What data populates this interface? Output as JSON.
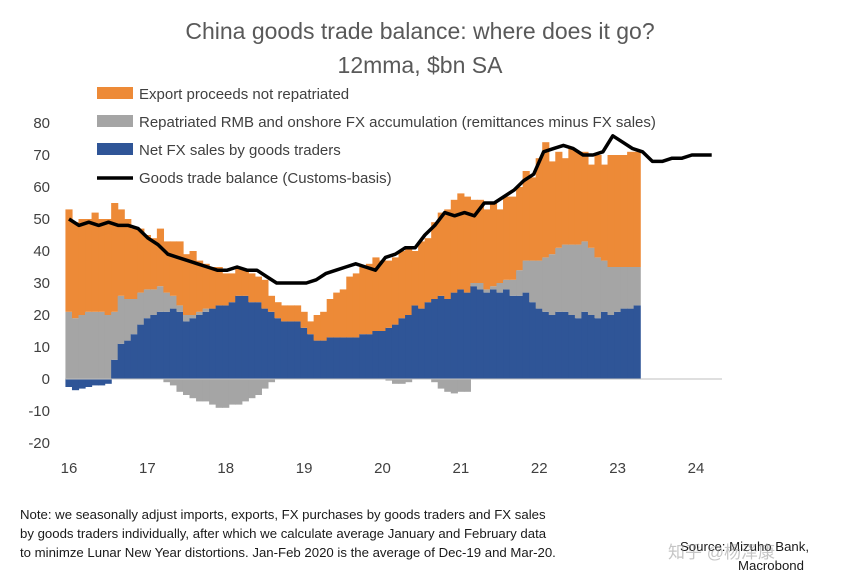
{
  "chart_data": {
    "type": "area",
    "title": "China goods trade balance: where does it go?",
    "subtitle": "12mma, $bn SA",
    "xlabel": "",
    "ylabel": "",
    "x_start": 2016.0,
    "x_step_years": 0.0833333,
    "x_ticks": [
      {
        "label": "16",
        "value": 2016
      },
      {
        "label": "17",
        "value": 2017
      },
      {
        "label": "18",
        "value": 2018
      },
      {
        "label": "19",
        "value": 2019
      },
      {
        "label": "20",
        "value": 2020
      },
      {
        "label": "21",
        "value": 2021
      },
      {
        "label": "22",
        "value": 2022
      },
      {
        "label": "23",
        "value": 2023
      },
      {
        "label": "24",
        "value": 2024
      }
    ],
    "ylim": [
      -20,
      80
    ],
    "y_ticks": [
      80,
      70,
      60,
      50,
      40,
      30,
      20,
      10,
      0,
      -10,
      -20
    ],
    "legend_position": "top-left",
    "series": [
      {
        "name": "Export proceeds not repatriated",
        "kind": "stacked-area",
        "color": "#ED8A37",
        "values": [
          32,
          30,
          30,
          29,
          31,
          29,
          30,
          34,
          27,
          25,
          22,
          20,
          17,
          16,
          18,
          16,
          17,
          20,
          19,
          20,
          16,
          14,
          13,
          12,
          10,
          9,
          9,
          8,
          9,
          8,
          9,
          5,
          5,
          5,
          5,
          5,
          5,
          4,
          8,
          9,
          12,
          14,
          15,
          19,
          20,
          21,
          22,
          23,
          22,
          21,
          21,
          21,
          21,
          17,
          21,
          20,
          24,
          26,
          28,
          29,
          30,
          30,
          26,
          26,
          25,
          26,
          23,
          26,
          26,
          26,
          28,
          26,
          32,
          36,
          29,
          30,
          27,
          30,
          29,
          28,
          26,
          32,
          30,
          35,
          35,
          35,
          36,
          36
        ]
      },
      {
        "name": "Repatriated RMB and onshore FX accumulation (remittances minus FX sales)",
        "kind": "stacked-area",
        "color": "#A5A5A5",
        "values": [
          21,
          19,
          20,
          21,
          21,
          21,
          20,
          15,
          15,
          13,
          11,
          10,
          9,
          8,
          8,
          6,
          4,
          2,
          2,
          1,
          1,
          1,
          0,
          0,
          0,
          0,
          0,
          0,
          0,
          0,
          0,
          0,
          0,
          0,
          0,
          0,
          0,
          0,
          0,
          0,
          0,
          0,
          0,
          0,
          0,
          0,
          0,
          0,
          0,
          0,
          0,
          0,
          0,
          0,
          0,
          0,
          0,
          0,
          0,
          0,
          0,
          0,
          1,
          2,
          1,
          1,
          3,
          3,
          5,
          8,
          10,
          13,
          15,
          17,
          19,
          20,
          21,
          22,
          23,
          22,
          21,
          19,
          16,
          15,
          14,
          13,
          13,
          12
        ]
      },
      {
        "name": "Net FX sales by goods traders",
        "kind": "stacked-area",
        "color": "#2F5597",
        "values": [
          -2.5,
          -3.5,
          -3,
          -2.5,
          -2,
          -2,
          -1.5,
          6,
          11,
          12,
          14,
          17,
          19,
          20,
          21,
          21,
          22,
          21,
          18,
          19,
          20,
          21,
          22,
          23,
          23,
          24,
          26,
          26,
          24,
          24,
          22,
          21,
          19,
          18,
          18,
          18,
          16,
          14,
          12,
          12,
          13,
          13,
          13,
          13,
          13,
          14,
          14,
          15,
          15,
          16,
          17,
          19,
          20,
          23,
          22,
          24,
          25,
          26,
          25,
          27,
          28,
          27,
          29,
          28,
          27,
          28,
          27,
          28,
          26,
          26,
          27,
          24,
          22,
          21,
          20,
          21,
          21,
          20,
          19,
          21,
          20,
          19,
          21,
          20,
          21,
          22,
          22,
          23
        ]
      },
      {
        "name": "Goods trade balance (Customs-basis)",
        "kind": "line",
        "color": "#000000",
        "values": [
          50,
          48,
          49,
          48,
          49,
          48,
          48,
          47,
          44,
          42,
          39,
          38,
          37,
          36,
          35,
          34,
          34,
          35,
          34,
          34,
          32,
          30,
          30,
          30,
          30,
          31,
          33,
          34,
          35,
          36,
          35,
          34,
          38,
          39,
          41,
          41,
          45,
          48,
          52,
          51,
          52,
          51,
          55,
          55,
          57,
          59,
          62,
          64,
          71,
          72,
          73,
          72,
          70,
          70,
          71,
          76,
          74,
          72,
          71,
          68,
          68,
          69,
          69,
          70,
          70,
          70
        ]
      },
      {
        "name": "Negative net FX (below zero)",
        "kind": "negative-bars",
        "color": "#A5A5A5",
        "values": [
          0,
          0,
          0,
          0,
          0,
          0,
          0,
          0,
          0,
          0,
          0,
          0,
          0,
          0,
          0,
          -1,
          -2,
          -4,
          -5,
          -6,
          -7,
          -7,
          -8,
          -9,
          -9,
          -8,
          -8,
          -7,
          -6,
          -5,
          -3,
          -1,
          0,
          0,
          0,
          0,
          0,
          0,
          0,
          0,
          0,
          0,
          0,
          0,
          0,
          0,
          0,
          0,
          0,
          -0.5,
          -1.5,
          -1.5,
          -1,
          0,
          0,
          0,
          -1,
          -3,
          -4,
          -4.5,
          -4,
          -4,
          0,
          0,
          0,
          0,
          0,
          0,
          0,
          0,
          0,
          0,
          0,
          0,
          0,
          0,
          0,
          0,
          0,
          0,
          0,
          0,
          0,
          0,
          0,
          0,
          0,
          0
        ]
      }
    ]
  },
  "note": {
    "lines": [
      "Note: we seasonally adjust imports, exports, FX purchases by goods traders and FX sales",
      "by goods traders individually, after which we calculate average January and February data",
      "to minimze Lunar New Year distortions. Jan-Feb 2020 is the average of Dec-19 and Mar-20."
    ]
  },
  "source": {
    "line1": "Source: Mizuho Bank,",
    "line2": "Macrobond"
  },
  "watermark": "知乎 @杨泽康",
  "colors": {
    "orange": "#ED8A37",
    "grey": "#A5A5A5",
    "blue": "#2F5597",
    "line": "#000000"
  }
}
